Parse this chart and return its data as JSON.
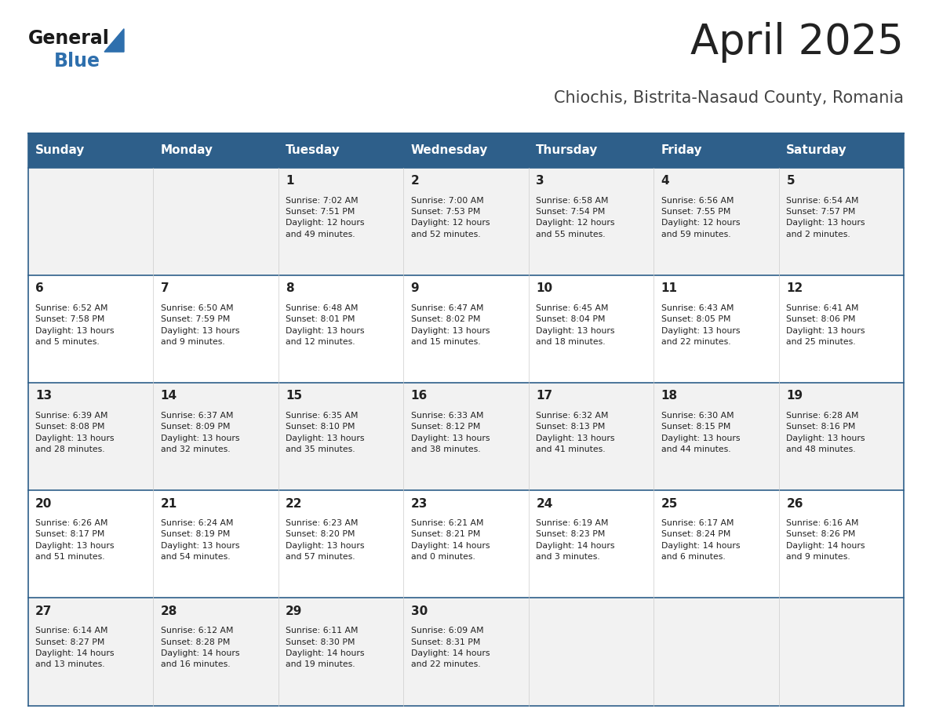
{
  "title": "April 2025",
  "subtitle": "Chiochis, Bistrita-Nasaud County, Romania",
  "header_bg_color": "#2E5F8A",
  "header_text_color": "#FFFFFF",
  "row_bg_even": "#F2F2F2",
  "row_bg_odd": "#FFFFFF",
  "border_color": "#2E5F8A",
  "text_color": "#222222",
  "days_of_week": [
    "Sunday",
    "Monday",
    "Tuesday",
    "Wednesday",
    "Thursday",
    "Friday",
    "Saturday"
  ],
  "weeks": [
    [
      {
        "day": "",
        "info": ""
      },
      {
        "day": "",
        "info": ""
      },
      {
        "day": "1",
        "info": "Sunrise: 7:02 AM\nSunset: 7:51 PM\nDaylight: 12 hours\nand 49 minutes."
      },
      {
        "day": "2",
        "info": "Sunrise: 7:00 AM\nSunset: 7:53 PM\nDaylight: 12 hours\nand 52 minutes."
      },
      {
        "day": "3",
        "info": "Sunrise: 6:58 AM\nSunset: 7:54 PM\nDaylight: 12 hours\nand 55 minutes."
      },
      {
        "day": "4",
        "info": "Sunrise: 6:56 AM\nSunset: 7:55 PM\nDaylight: 12 hours\nand 59 minutes."
      },
      {
        "day": "5",
        "info": "Sunrise: 6:54 AM\nSunset: 7:57 PM\nDaylight: 13 hours\nand 2 minutes."
      }
    ],
    [
      {
        "day": "6",
        "info": "Sunrise: 6:52 AM\nSunset: 7:58 PM\nDaylight: 13 hours\nand 5 minutes."
      },
      {
        "day": "7",
        "info": "Sunrise: 6:50 AM\nSunset: 7:59 PM\nDaylight: 13 hours\nand 9 minutes."
      },
      {
        "day": "8",
        "info": "Sunrise: 6:48 AM\nSunset: 8:01 PM\nDaylight: 13 hours\nand 12 minutes."
      },
      {
        "day": "9",
        "info": "Sunrise: 6:47 AM\nSunset: 8:02 PM\nDaylight: 13 hours\nand 15 minutes."
      },
      {
        "day": "10",
        "info": "Sunrise: 6:45 AM\nSunset: 8:04 PM\nDaylight: 13 hours\nand 18 minutes."
      },
      {
        "day": "11",
        "info": "Sunrise: 6:43 AM\nSunset: 8:05 PM\nDaylight: 13 hours\nand 22 minutes."
      },
      {
        "day": "12",
        "info": "Sunrise: 6:41 AM\nSunset: 8:06 PM\nDaylight: 13 hours\nand 25 minutes."
      }
    ],
    [
      {
        "day": "13",
        "info": "Sunrise: 6:39 AM\nSunset: 8:08 PM\nDaylight: 13 hours\nand 28 minutes."
      },
      {
        "day": "14",
        "info": "Sunrise: 6:37 AM\nSunset: 8:09 PM\nDaylight: 13 hours\nand 32 minutes."
      },
      {
        "day": "15",
        "info": "Sunrise: 6:35 AM\nSunset: 8:10 PM\nDaylight: 13 hours\nand 35 minutes."
      },
      {
        "day": "16",
        "info": "Sunrise: 6:33 AM\nSunset: 8:12 PM\nDaylight: 13 hours\nand 38 minutes."
      },
      {
        "day": "17",
        "info": "Sunrise: 6:32 AM\nSunset: 8:13 PM\nDaylight: 13 hours\nand 41 minutes."
      },
      {
        "day": "18",
        "info": "Sunrise: 6:30 AM\nSunset: 8:15 PM\nDaylight: 13 hours\nand 44 minutes."
      },
      {
        "day": "19",
        "info": "Sunrise: 6:28 AM\nSunset: 8:16 PM\nDaylight: 13 hours\nand 48 minutes."
      }
    ],
    [
      {
        "day": "20",
        "info": "Sunrise: 6:26 AM\nSunset: 8:17 PM\nDaylight: 13 hours\nand 51 minutes."
      },
      {
        "day": "21",
        "info": "Sunrise: 6:24 AM\nSunset: 8:19 PM\nDaylight: 13 hours\nand 54 minutes."
      },
      {
        "day": "22",
        "info": "Sunrise: 6:23 AM\nSunset: 8:20 PM\nDaylight: 13 hours\nand 57 minutes."
      },
      {
        "day": "23",
        "info": "Sunrise: 6:21 AM\nSunset: 8:21 PM\nDaylight: 14 hours\nand 0 minutes."
      },
      {
        "day": "24",
        "info": "Sunrise: 6:19 AM\nSunset: 8:23 PM\nDaylight: 14 hours\nand 3 minutes."
      },
      {
        "day": "25",
        "info": "Sunrise: 6:17 AM\nSunset: 8:24 PM\nDaylight: 14 hours\nand 6 minutes."
      },
      {
        "day": "26",
        "info": "Sunrise: 6:16 AM\nSunset: 8:26 PM\nDaylight: 14 hours\nand 9 minutes."
      }
    ],
    [
      {
        "day": "27",
        "info": "Sunrise: 6:14 AM\nSunset: 8:27 PM\nDaylight: 14 hours\nand 13 minutes."
      },
      {
        "day": "28",
        "info": "Sunrise: 6:12 AM\nSunset: 8:28 PM\nDaylight: 14 hours\nand 16 minutes."
      },
      {
        "day": "29",
        "info": "Sunrise: 6:11 AM\nSunset: 8:30 PM\nDaylight: 14 hours\nand 19 minutes."
      },
      {
        "day": "30",
        "info": "Sunrise: 6:09 AM\nSunset: 8:31 PM\nDaylight: 14 hours\nand 22 minutes."
      },
      {
        "day": "",
        "info": ""
      },
      {
        "day": "",
        "info": ""
      },
      {
        "day": "",
        "info": ""
      }
    ]
  ]
}
